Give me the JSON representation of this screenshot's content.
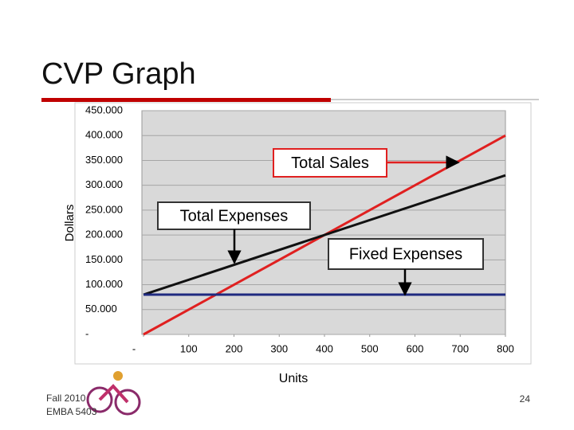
{
  "chart_data": {
    "type": "line",
    "title": "CVP Graph",
    "x_label": "Units",
    "y_label": "Dollars",
    "x": [
      0,
      800
    ],
    "series": [
      {
        "name": "Total Sales",
        "color": "#e02020",
        "values": [
          0,
          400000
        ]
      },
      {
        "name": "Total Expenses",
        "color": "#111111",
        "values": [
          80000,
          320000
        ]
      },
      {
        "name": "Fixed Expenses",
        "color": "#1f2a80",
        "values": [
          80000,
          80000
        ]
      }
    ],
    "xlim": [
      0,
      800
    ],
    "xticks": [
      {
        "value": 0,
        "label": "-"
      },
      100,
      200,
      300,
      400,
      500,
      600,
      700,
      800
    ],
    "ylim": [
      0,
      450000
    ],
    "yticks": [
      {
        "value": 0,
        "label": "-"
      },
      {
        "value": 50000,
        "label": "50.000"
      },
      {
        "value": 100000,
        "label": "100.000"
      },
      {
        "value": 150000,
        "label": "150.000"
      },
      {
        "value": 200000,
        "label": "200.000"
      },
      {
        "value": 250000,
        "label": "250.000"
      },
      {
        "value": 300000,
        "label": "300.000"
      },
      {
        "value": 350000,
        "label": "350.000"
      },
      {
        "value": 400000,
        "label": "400.000"
      },
      {
        "value": 450000,
        "label": "450.000"
      }
    ],
    "grid": true
  },
  "footer": {
    "course": [
      "Fall 2010",
      "EMBA 5403"
    ],
    "page": "24"
  }
}
